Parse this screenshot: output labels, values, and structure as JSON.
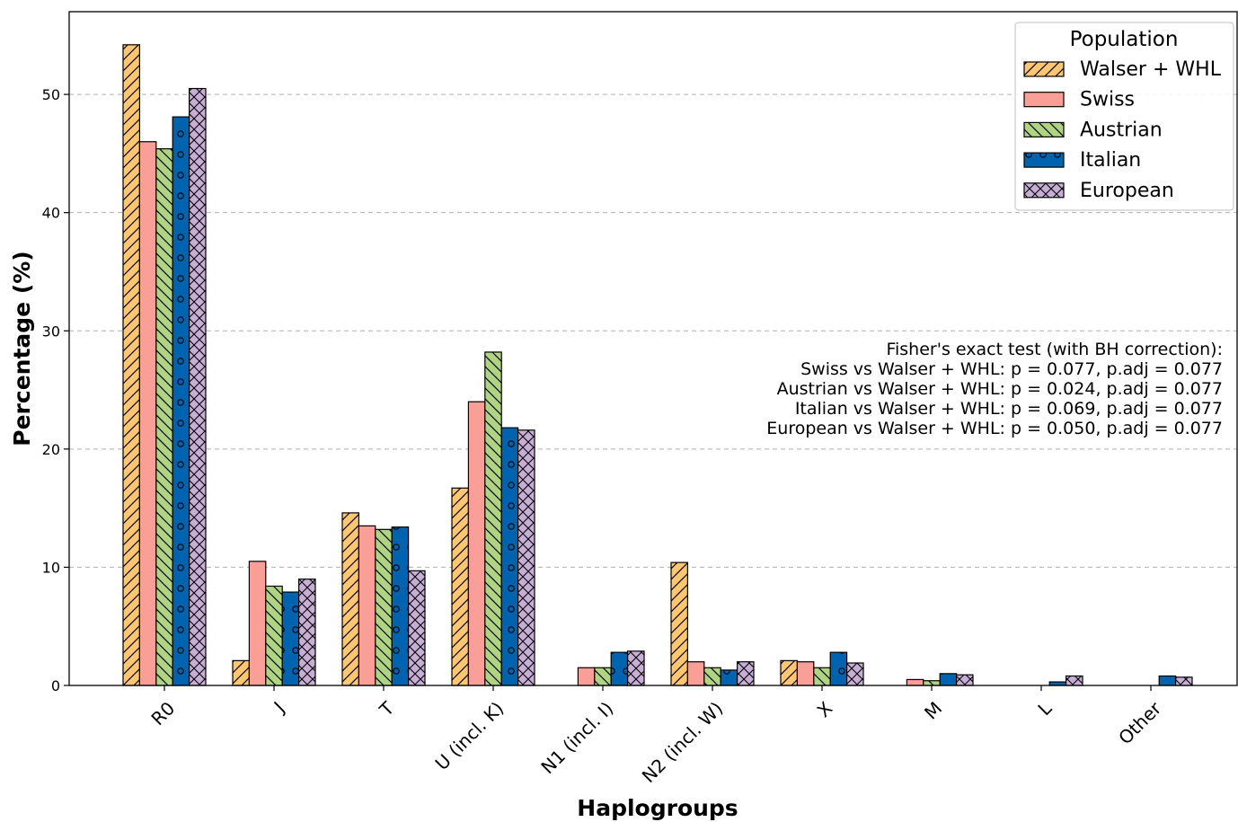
{
  "chart_data": {
    "type": "bar",
    "xlabel": "Haplogroups",
    "ylabel": "Percentage (%)",
    "ylim": [
      0,
      57
    ],
    "yticks": [
      0,
      10,
      20,
      30,
      40,
      50
    ],
    "grid": "y dashed",
    "categories": [
      "R0",
      "J",
      "T",
      "U (incl. K)",
      "N1 (incl. I)",
      "N2 (incl. W)",
      "X",
      "M",
      "L",
      "Other"
    ],
    "series": [
      {
        "name": "Walser + WHL",
        "color": "#FFC672",
        "hatch": "forward-diagonal",
        "values": [
          54.2,
          2.1,
          14.6,
          16.7,
          0.0,
          10.4,
          2.1,
          0.0,
          0.0,
          0.0
        ]
      },
      {
        "name": "Swiss",
        "color": "#FA9E98",
        "hatch": "none",
        "values": [
          46.0,
          10.5,
          13.5,
          24.0,
          1.5,
          2.0,
          2.0,
          0.5,
          0.0,
          0.0
        ]
      },
      {
        "name": "Austrian",
        "color": "#AFD583",
        "hatch": "back-diagonal",
        "values": [
          45.4,
          8.4,
          13.2,
          28.2,
          1.5,
          1.5,
          1.5,
          0.4,
          0.0,
          0.0
        ]
      },
      {
        "name": "Italian",
        "color": "#0063AF",
        "hatch": "circles",
        "values": [
          48.1,
          7.9,
          13.4,
          21.8,
          2.8,
          1.3,
          2.8,
          1.0,
          0.3,
          0.8
        ]
      },
      {
        "name": "European",
        "color": "#C8AED6",
        "hatch": "cross",
        "values": [
          50.5,
          9.0,
          9.7,
          21.6,
          2.9,
          2.0,
          1.9,
          0.9,
          0.8,
          0.7
        ]
      }
    ],
    "legend": {
      "title": "Population",
      "placement": "top-right"
    },
    "annotation": [
      "Fisher's exact test (with BH correction):",
      "Swiss vs Walser + WHL: p = 0.077, p.adj = 0.077",
      "Austrian vs Walser + WHL: p = 0.024, p.adj = 0.077",
      "Italian vs Walser + WHL: p = 0.069, p.adj = 0.077",
      "European vs Walser + WHL: p = 0.050, p.adj = 0.077"
    ]
  }
}
